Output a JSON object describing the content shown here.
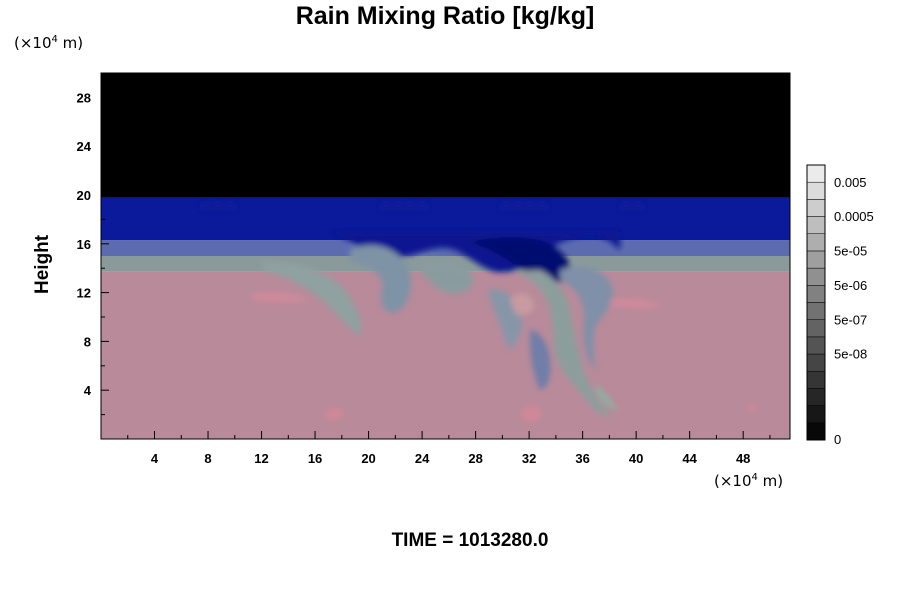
{
  "chart_data": {
    "type": "heatmap",
    "title": "Rain Mixing Ratio [kg/kg]",
    "ylabel": "Height",
    "xlabel": "",
    "y_unit_base": "(×10",
    "y_unit_exp": "4",
    "y_unit_tail": " m)",
    "x_unit_base": "(×10",
    "x_unit_exp": "4",
    "x_unit_tail": " m)",
    "xlim": [
      0,
      51.5
    ],
    "ylim": [
      0,
      30
    ],
    "x_ticks": [
      4,
      8,
      12,
      16,
      20,
      24,
      28,
      32,
      36,
      40,
      44,
      48
    ],
    "y_ticks": [
      4,
      8,
      12,
      16,
      20,
      24,
      28
    ],
    "colorbar": {
      "labels": [
        "0.005",
        "0.0005",
        "5e-05",
        "5e-06",
        "5e-07",
        "5e-08",
        "0"
      ],
      "levels": 16
    },
    "field_layers": [
      {
        "from": 0,
        "to": 13.7,
        "color": "#b88a9a"
      },
      {
        "from": 13.7,
        "to": 15.0,
        "color": "#8a9a9a"
      },
      {
        "from": 15.0,
        "to": 16.3,
        "color": "#5c6bb0"
      },
      {
        "from": 16.3,
        "to": 19.8,
        "color": "#0a1a9a"
      },
      {
        "from": 19.8,
        "to": 30,
        "color": "#000000"
      }
    ],
    "footer": "TIME = 1013280.0"
  }
}
